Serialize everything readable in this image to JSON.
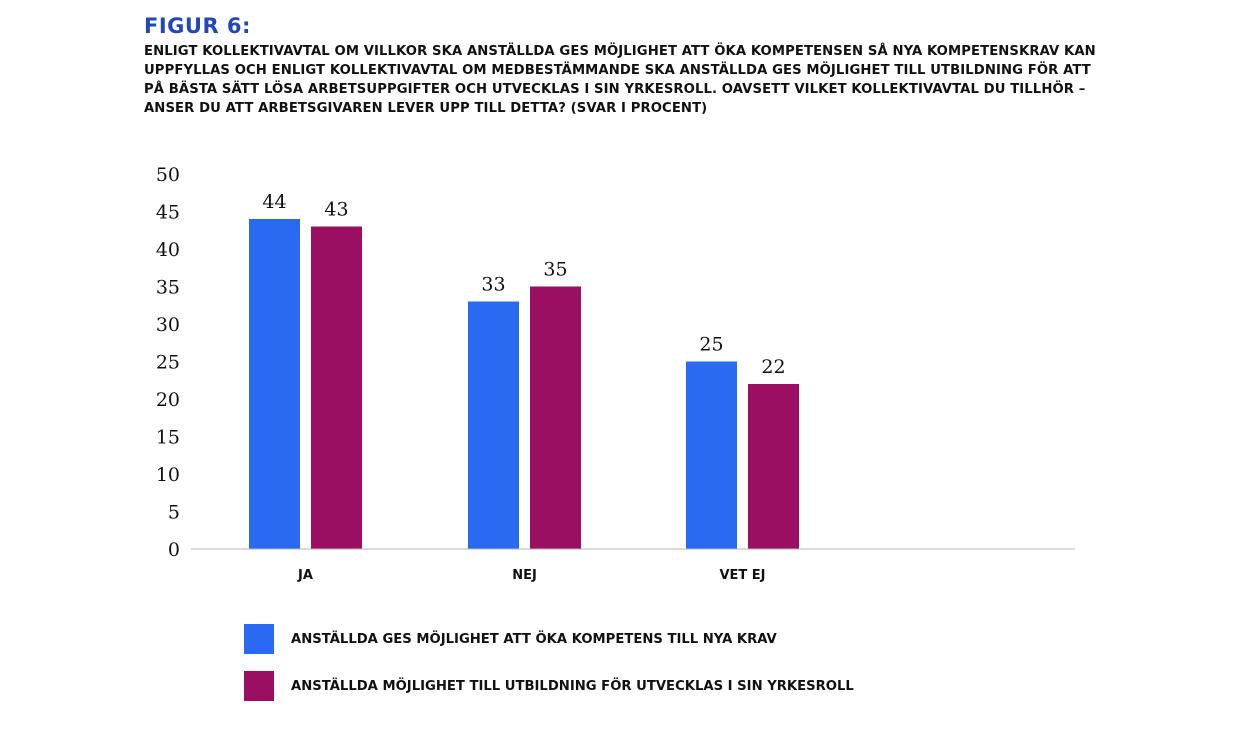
{
  "figure": {
    "label": "FIGUR 6:",
    "title": "ENLIGT KOLLEKTIVAVTAL OM VILLKOR SKA ANSTÄLLDA GES MÖJLIGHET ATT ÖKA KOMPETENSEN SÅ NYA KOMPETENSKRAV KAN UPPFYLLAS OCH ENLIGT KOLLEKTIVAVTAL OM MEDBESTÄMMANDE SKA ANSTÄLLDA GES MÖJLIGHET TILL UTBILDNING FÖR ATT PÅ BÄSTA SÄTT LÖSA ARBETSUPPGIFTER OCH UTVECKLAS I SIN YRKESROLL. OAVSETT VILKET KOLLEKTIVAVTAL DU TILLHÖR – ANSER DU ATT ARBETSGIVAREN LEVER UPP TILL DETTA? (SVAR I PROCENT)"
  },
  "chart_data": {
    "type": "bar",
    "categories": [
      "JA",
      "NEJ",
      "VET EJ"
    ],
    "series": [
      {
        "name": "ANSTÄLLDA GES MÖJLIGHET ATT ÖKA KOMPETENS TILL NYA KRAV",
        "values": [
          44,
          33,
          25
        ],
        "data_labels": [
          "44",
          "33",
          "25"
        ],
        "color": "#2a69f2"
      },
      {
        "name": "ANSTÄLLDA MÖJLIGHET TILL UTBILDNING FÖR UTVECKLAS I SIN YRKESROLL",
        "values": [
          43,
          35,
          22
        ],
        "data_labels": [
          "43",
          "35",
          "22"
        ],
        "color": "#9b0f63"
      }
    ],
    "ylim": [
      0,
      50
    ],
    "yticks": [
      "0",
      "5",
      "10",
      "15",
      "20",
      "25",
      "30",
      "35",
      "40",
      "45",
      "50"
    ],
    "grid": false,
    "legend": "bottom-left"
  }
}
